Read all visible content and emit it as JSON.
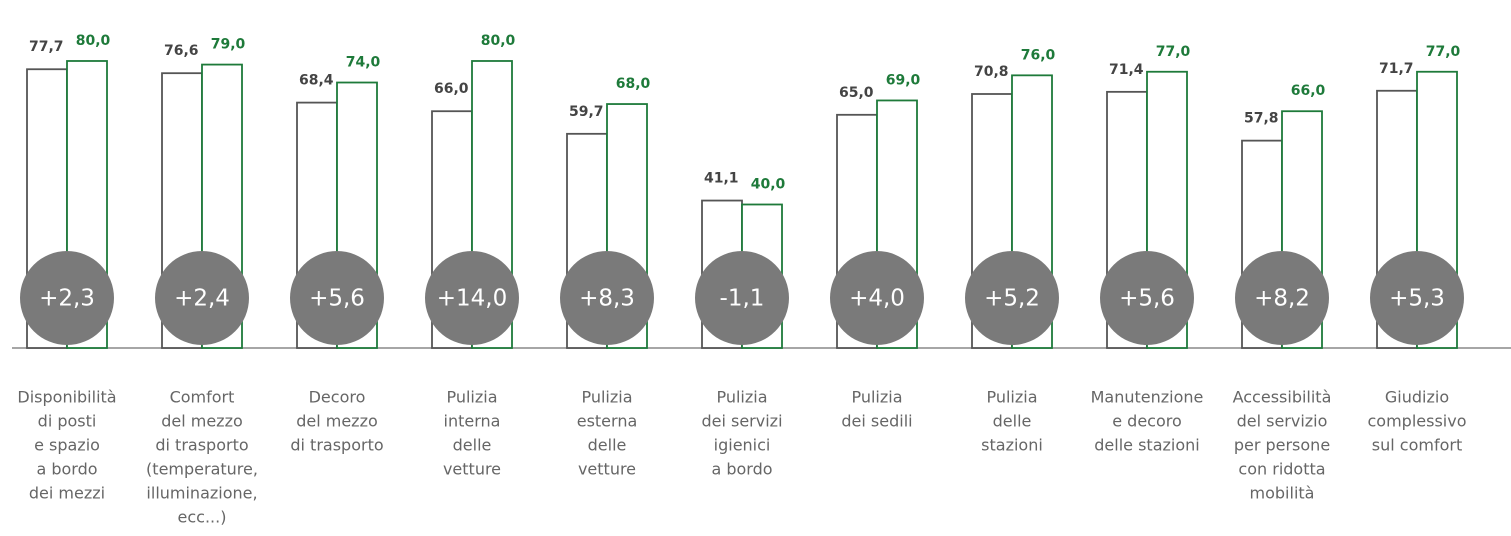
{
  "chart_data": {
    "type": "bar",
    "categories": [
      [
        "Disponibilità",
        "di posti",
        "e spazio",
        "a bordo",
        "dei mezzi"
      ],
      [
        "Comfort",
        "del mezzo",
        "di trasporto",
        "(temperature,",
        "illuminazione,",
        "ecc...)"
      ],
      [
        "Decoro",
        "del mezzo",
        "di trasporto"
      ],
      [
        "Pulizia",
        "interna",
        "delle",
        "vetture"
      ],
      [
        "Pulizia",
        "esterna",
        "delle",
        "vetture"
      ],
      [
        "Pulizia",
        "dei servizi",
        "igienici",
        "a bordo"
      ],
      [
        "Pulizia",
        "dei sedili"
      ],
      [
        "Pulizia",
        "delle",
        "stazioni"
      ],
      [
        "Manutenzione",
        "e decoro",
        "delle stazioni"
      ],
      [
        "Accessibilità",
        "del servizio",
        "per persone",
        "con ridotta",
        "mobilità"
      ],
      [
        "Giudizio",
        "complessivo",
        "sul comfort"
      ]
    ],
    "series": [
      {
        "color": "#555555",
        "values": [
          77.7,
          76.6,
          68.4,
          66.0,
          59.7,
          41.1,
          65.0,
          70.8,
          71.4,
          57.8,
          71.7
        ],
        "value_labels": [
          "77,7",
          "76,6",
          "68,4",
          "66,0",
          "59,7",
          "41,1",
          "65,0",
          "70,8",
          "71,4",
          "57,8",
          "71,7"
        ]
      },
      {
        "color": "#1e7a3a",
        "values": [
          80,
          79,
          74,
          80,
          68,
          40,
          69,
          76,
          77,
          66,
          77
        ],
        "value_labels": [
          "80,0",
          "79,0",
          "74,0",
          "80,0",
          "68,0",
          "40,0",
          "69,0",
          "76,0",
          "77,0",
          "66,0",
          "77,0"
        ]
      }
    ],
    "annotations": [
      "+2,3",
      "+2,4",
      "+5,6",
      "+14,0",
      "+8,3",
      "-1,1",
      "+4,0",
      "+5,2",
      "+5,6",
      "+8,2",
      "+5,3"
    ],
    "ylim": [
      0,
      97
    ]
  }
}
